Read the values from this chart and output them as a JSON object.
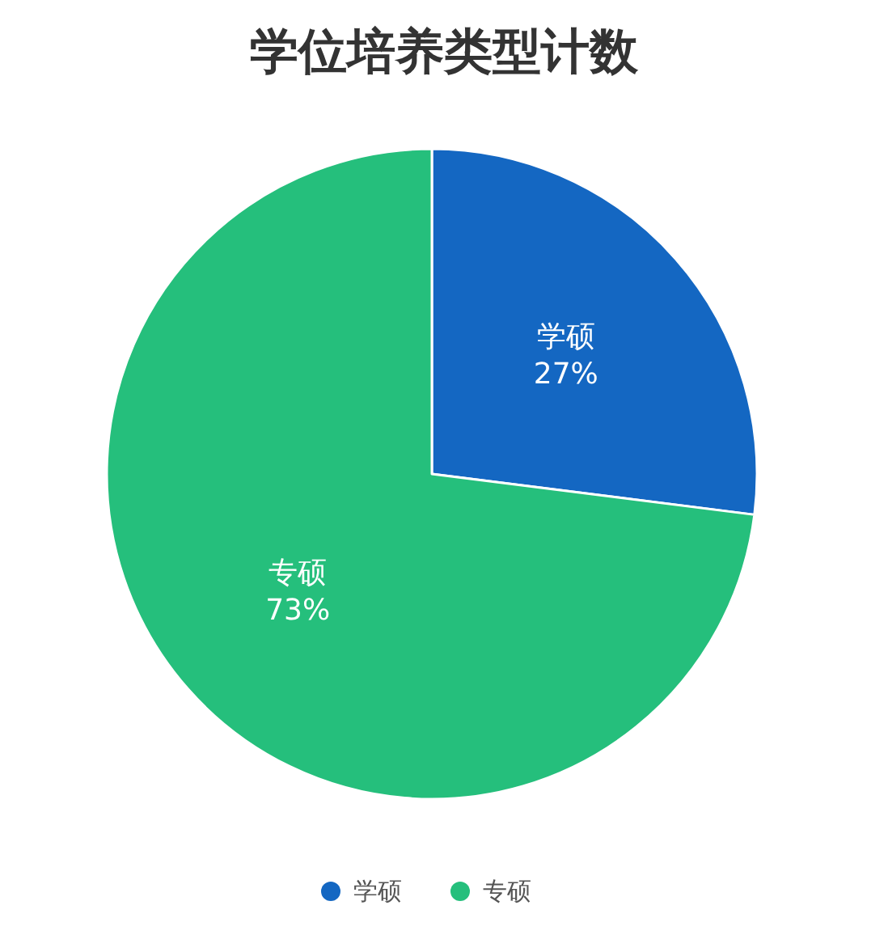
{
  "chart_data": {
    "type": "pie",
    "title": "学位培养类型计数",
    "categories": [
      "学硕",
      "专硕"
    ],
    "values": [
      27,
      73
    ],
    "colors": [
      "#1467c2",
      "#25bf7c"
    ],
    "value_labels": [
      "27%",
      "73%"
    ],
    "legend": "bottom"
  }
}
